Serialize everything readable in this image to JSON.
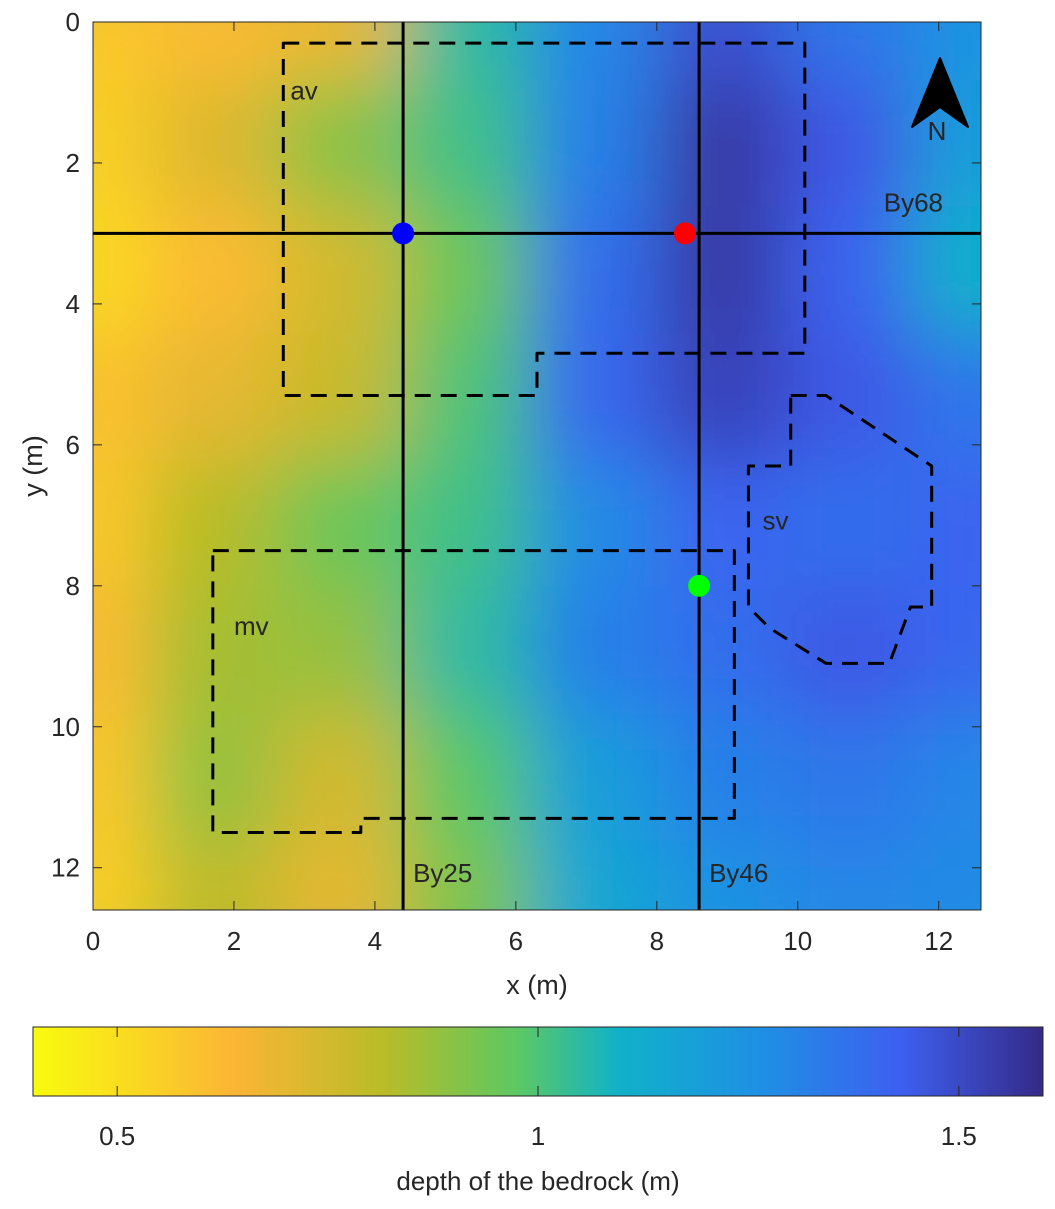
{
  "chart_data": {
    "type": "heatmap",
    "title": "",
    "xlabel": "x (m)",
    "ylabel": "y (m)",
    "xlim": [
      0,
      12.6
    ],
    "ylim": [
      0,
      12.6
    ],
    "y_axis_reversed": true,
    "x_ticks": [
      "0",
      "2",
      "4",
      "6",
      "8",
      "10",
      "12"
    ],
    "y_ticks": [
      "0",
      "2",
      "4",
      "6",
      "8",
      "10",
      "12"
    ],
    "grid": false,
    "colormap": "parula",
    "colorbar": {
      "label": "depth of the bedrock (m)",
      "orientation": "horizontal",
      "range": [
        0.4,
        1.6
      ],
      "ticks": [
        "0.5",
        "1",
        "1.5"
      ],
      "placement": "bottom"
    },
    "z_grid": {
      "x_step": 1.8,
      "y_step": 1.8,
      "x_start": 0,
      "y_start": 0,
      "rows": [
        [
          0.58,
          0.62,
          0.68,
          1.05,
          1.3,
          1.48,
          1.35,
          1.25
        ],
        [
          0.55,
          0.72,
          0.9,
          1.02,
          1.32,
          1.55,
          1.45,
          1.2
        ],
        [
          0.52,
          0.62,
          0.75,
          0.95,
          1.38,
          1.55,
          1.42,
          1.1
        ],
        [
          0.6,
          0.7,
          0.78,
          1.0,
          1.4,
          1.52,
          1.45,
          1.35
        ],
        [
          0.58,
          0.82,
          0.95,
          1.02,
          1.28,
          1.42,
          1.38,
          1.42
        ],
        [
          0.62,
          0.85,
          0.88,
          1.05,
          1.32,
          1.38,
          1.45,
          1.4
        ],
        [
          0.58,
          0.88,
          0.75,
          0.98,
          1.2,
          1.32,
          1.35,
          1.3
        ],
        [
          0.55,
          0.8,
          0.7,
          0.92,
          1.15,
          1.25,
          1.3,
          1.28
        ]
      ]
    },
    "profile_lines": [
      {
        "label": "By25",
        "orientation": "vertical",
        "x": 4.4
      },
      {
        "label": "By46",
        "orientation": "vertical",
        "x": 8.6
      },
      {
        "label": "By68",
        "orientation": "horizontal",
        "y": 3.0
      }
    ],
    "zones": [
      {
        "label": "av",
        "label_pos": [
          2.8,
          1.1
        ],
        "polygon": [
          [
            2.7,
            0.3
          ],
          [
            10.1,
            0.3
          ],
          [
            10.1,
            4.7
          ],
          [
            6.3,
            4.7
          ],
          [
            6.3,
            5.3
          ],
          [
            2.7,
            5.3
          ]
        ]
      },
      {
        "label": "mv",
        "label_pos": [
          2.0,
          8.7
        ],
        "polygon": [
          [
            1.7,
            7.5
          ],
          [
            9.1,
            7.5
          ],
          [
            9.1,
            11.3
          ],
          [
            3.8,
            11.3
          ],
          [
            3.8,
            11.5
          ],
          [
            1.7,
            11.5
          ]
        ]
      },
      {
        "label": "sv",
        "label_pos": [
          9.5,
          7.2
        ],
        "polygon": [
          [
            9.9,
            5.3
          ],
          [
            10.4,
            5.3
          ],
          [
            11.9,
            6.3
          ],
          [
            11.9,
            8.3
          ],
          [
            11.6,
            8.3
          ],
          [
            11.3,
            9.1
          ],
          [
            10.4,
            9.1
          ],
          [
            9.6,
            8.6
          ],
          [
            9.3,
            8.3
          ],
          [
            9.3,
            6.3
          ],
          [
            9.9,
            6.3
          ]
        ]
      }
    ],
    "points": [
      {
        "color": "#0000ff",
        "x": 4.4,
        "y": 3.0
      },
      {
        "color": "#ff0000",
        "x": 8.4,
        "y": 3.0
      },
      {
        "color": "#00ff00",
        "x": 8.6,
        "y": 8.0
      }
    ],
    "north_arrow": {
      "label": "N",
      "placement": "top-right"
    }
  }
}
